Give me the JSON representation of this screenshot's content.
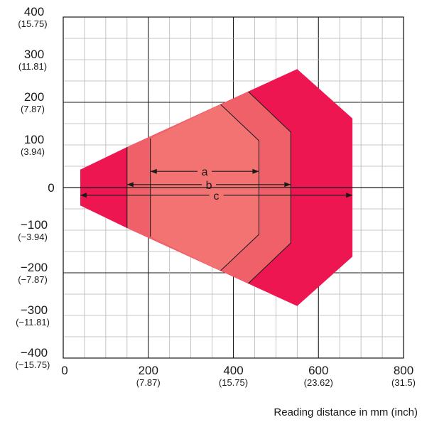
{
  "chart_data": {
    "type": "area",
    "xlabel": "Reading distance in mm (inch)",
    "ylabel": "",
    "xlim": [
      0,
      800
    ],
    "ylim": [
      -400,
      400
    ],
    "grid": true,
    "x_ticks": [
      {
        "value": 0,
        "label": "0",
        "sublabel": ""
      },
      {
        "value": 200,
        "label": "200",
        "sublabel": "(7.87)"
      },
      {
        "value": 400,
        "label": "400",
        "sublabel": "(15.75)"
      },
      {
        "value": 600,
        "label": "600",
        "sublabel": "(23.62)"
      },
      {
        "value": 800,
        "label": "800",
        "sublabel": "(31.5)"
      }
    ],
    "y_ticks": [
      {
        "value": 400,
        "label": "400",
        "sublabel": "(15.75)"
      },
      {
        "value": 300,
        "label": "300",
        "sublabel": "(11.81)"
      },
      {
        "value": 200,
        "label": "200",
        "sublabel": "(7.87)"
      },
      {
        "value": 100,
        "label": "100",
        "sublabel": "(3.94)"
      },
      {
        "value": 0,
        "label": "0",
        "sublabel": ""
      },
      {
        "value": -100,
        "label": "−100",
        "sublabel": "(−3.94)"
      },
      {
        "value": -200,
        "label": "−200",
        "sublabel": "(−7.87)"
      },
      {
        "value": -300,
        "label": "−300",
        "sublabel": "(−11.81)"
      },
      {
        "value": -400,
        "label": "−400",
        "sublabel": "(−15.75)"
      }
    ],
    "fields": [
      {
        "name": "c",
        "color": "#ed1651",
        "polygon": [
          [
            40,
            42
          ],
          [
            150,
            95
          ],
          [
            550,
            278
          ],
          [
            680,
            162
          ],
          [
            680,
            -162
          ],
          [
            550,
            -278
          ],
          [
            150,
            -95
          ],
          [
            40,
            -42
          ]
        ]
      },
      {
        "name": "b",
        "color": "#f06068",
        "polygon": [
          [
            150,
            95
          ],
          [
            435,
            225
          ],
          [
            535,
            130
          ],
          [
            535,
            -130
          ],
          [
            435,
            -225
          ],
          [
            150,
            -95
          ]
        ]
      },
      {
        "name": "a",
        "color": "#f37373",
        "polygon": [
          [
            205,
            115
          ],
          [
            370,
            195
          ],
          [
            460,
            110
          ],
          [
            460,
            -110
          ],
          [
            370,
            -195
          ],
          [
            205,
            -115
          ]
        ]
      }
    ],
    "dimensions": [
      {
        "label": "a",
        "from": 205,
        "to": 460,
        "y": 38
      },
      {
        "label": "b",
        "from": 150,
        "to": 535,
        "y": 7
      },
      {
        "label": "c",
        "from": 40,
        "to": 680,
        "y": -18
      }
    ],
    "field_edges": [
      [
        [
          205,
          115
        ],
        [
          205,
          -115
        ]
      ],
      [
        [
          150,
          95
        ],
        [
          150,
          -95
        ]
      ],
      [
        [
          370,
          195
        ],
        [
          460,
          110
        ],
        [
          460,
          -110
        ],
        [
          370,
          -195
        ]
      ],
      [
        [
          435,
          225
        ],
        [
          535,
          130
        ],
        [
          535,
          -130
        ],
        [
          435,
          -225
        ]
      ]
    ]
  }
}
